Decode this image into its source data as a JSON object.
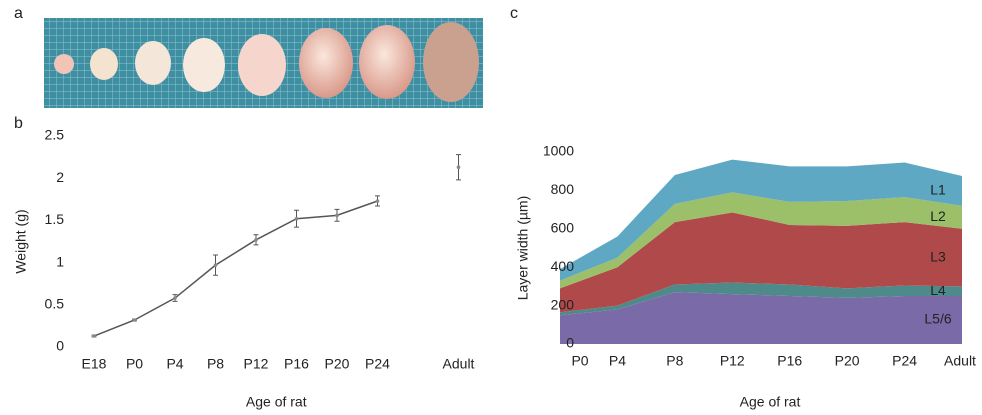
{
  "panel_labels": [
    "a",
    "b",
    "c"
  ],
  "chart_data": [
    {
      "type": "line",
      "y_label": "Weight (g)",
      "x_label": "Age of rat",
      "categories": [
        "E18",
        "P0",
        "P4",
        "P8",
        "P12",
        "P16",
        "P20",
        "P24",
        null,
        "Adult"
      ],
      "values": [
        0.13,
        0.32,
        0.58,
        0.97,
        1.27,
        1.52,
        1.56,
        1.73,
        null,
        2.13
      ],
      "errors": [
        0.01,
        0.01,
        0.04,
        0.12,
        0.06,
        0.1,
        0.07,
        0.06,
        null,
        0.15
      ],
      "color": "#555555",
      "ylim": [
        0,
        2.5
      ],
      "yticks": [
        0,
        0.5,
        1,
        1.5,
        2,
        2.5
      ]
    },
    {
      "type": "stacked_area",
      "y_label": "Layer width (µm)",
      "x_label": "Age of rat",
      "categories": [
        "P0",
        "P4",
        "P8",
        "P12",
        "P16",
        "P20",
        "P24",
        "Adult"
      ],
      "series": [
        {
          "name": "L5/6",
          "color": "#7b6aa8",
          "values": [
            150,
            180,
            270,
            260,
            250,
            240,
            250,
            250
          ]
        },
        {
          "name": "L4",
          "color": "#4f8a8a",
          "values": [
            15,
            20,
            40,
            60,
            60,
            50,
            55,
            50
          ]
        },
        {
          "name": "L3",
          "color": "#b04a4a",
          "values": [
            125,
            200,
            325,
            365,
            310,
            325,
            330,
            300
          ]
        },
        {
          "name": "L2",
          "color": "#9cbf6a",
          "values": [
            40,
            50,
            95,
            105,
            120,
            130,
            130,
            120
          ]
        },
        {
          "name": "L1",
          "color": "#5fa8c4",
          "values": [
            60,
            110,
            150,
            170,
            185,
            180,
            180,
            155
          ]
        }
      ],
      "ylim": [
        0,
        1000
      ],
      "yticks": [
        0,
        200,
        400,
        600,
        800,
        1000
      ]
    }
  ]
}
